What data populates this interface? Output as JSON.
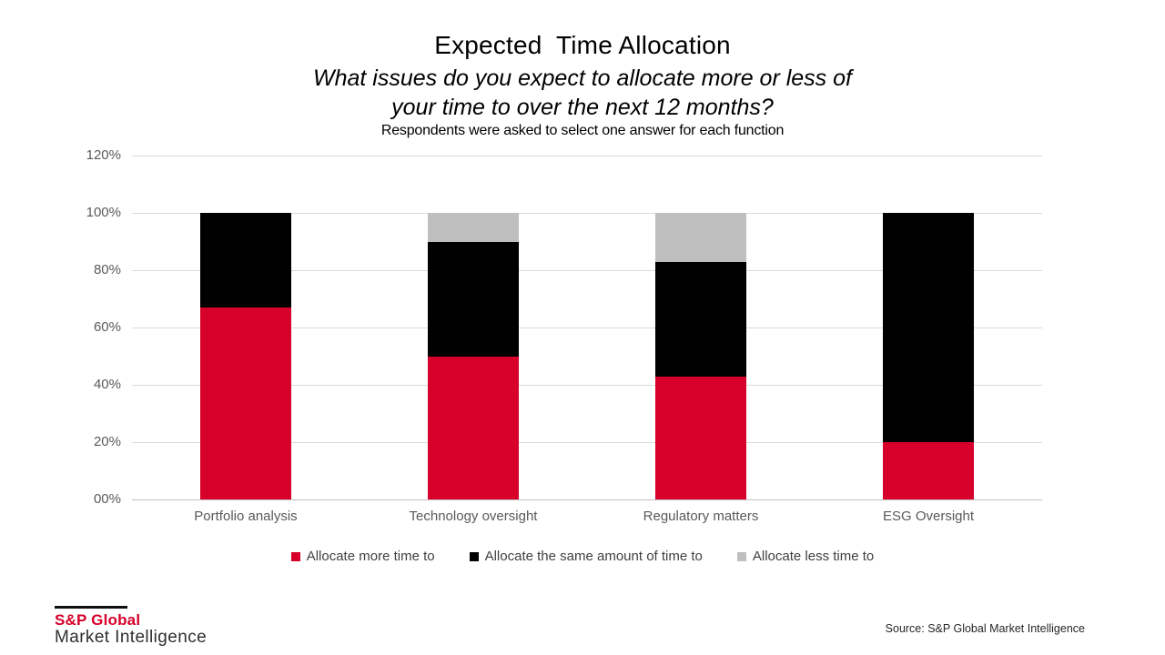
{
  "header": {
    "title": "Expected  Time Allocation",
    "subtitle_line1": "What issues do you expect to allocate more or less of",
    "subtitle_line2": "your time to over the next 12 months?",
    "note": "Respondents were asked to select one answer for each function"
  },
  "chart_data": {
    "type": "bar",
    "variant": "stacked-column",
    "title": "Expected Time Allocation",
    "categories": [
      "Portfolio analysis",
      "Technology oversight",
      "Regulatory matters",
      "ESG Oversight"
    ],
    "series": [
      {
        "name": "Allocate more time to",
        "color": "#d6002a",
        "values": [
          67,
          50,
          43,
          20
        ]
      },
      {
        "name": "Allocate the same amount of time to",
        "color": "#000000",
        "values": [
          33,
          40,
          40,
          80
        ]
      },
      {
        "name": "Allocate less time to",
        "color": "#bfbfbf",
        "values": [
          0,
          10,
          17,
          0
        ]
      }
    ],
    "y_axis": {
      "tick_labels": [
        "00%",
        "20%",
        "40%",
        "60%",
        "80%",
        "100%",
        "120%"
      ],
      "ylim": [
        0,
        120
      ],
      "unit": "%"
    },
    "grid": true,
    "gridline_color": "#d9d9d9",
    "legend_position": "bottom"
  },
  "footer": {
    "logo_line1": "S&P Global",
    "logo_line2": "Market Intelligence",
    "source": "Source: S&P Global Market Intelligence"
  }
}
